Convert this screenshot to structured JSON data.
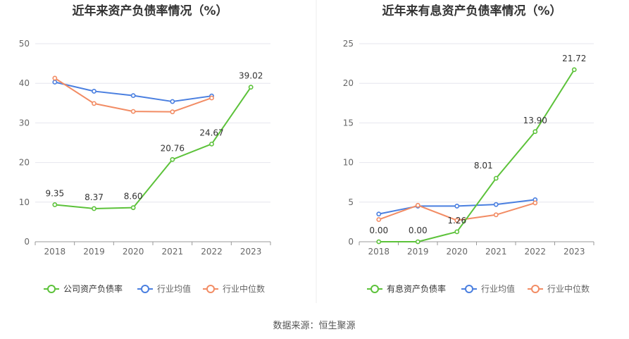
{
  "source": "数据来源：恒生聚源",
  "chart_data": [
    {
      "type": "line",
      "title": "近年来资产负债率情况（%）",
      "categories": [
        "2018",
        "2019",
        "2020",
        "2021",
        "2022",
        "2023"
      ],
      "ylim": [
        0,
        50
      ],
      "yticks": [
        0,
        10,
        20,
        30,
        40,
        50
      ],
      "grid": true,
      "legend_position": "bottom",
      "series": [
        {
          "name": "公司资产负债率",
          "color": "#5cc23a",
          "values": [
            9.35,
            8.37,
            8.6,
            20.76,
            24.67,
            39.02
          ],
          "labels": [
            "9.35",
            "8.37",
            "8.60",
            "20.76",
            "24.67",
            "39.02"
          ]
        },
        {
          "name": "行业均值",
          "color": "#4a7fe0",
          "values": [
            40.3,
            38.0,
            36.9,
            35.4,
            36.8,
            null
          ]
        },
        {
          "name": "行业中位数",
          "color": "#f28c64",
          "values": [
            41.3,
            34.9,
            32.9,
            32.8,
            36.3,
            null
          ]
        }
      ]
    },
    {
      "type": "line",
      "title": "近年来有息资产负债率情况（%）",
      "categories": [
        "2018",
        "2019",
        "2020",
        "2021",
        "2022",
        "2023"
      ],
      "ylim": [
        0,
        25
      ],
      "yticks": [
        0,
        5,
        10,
        15,
        20,
        25
      ],
      "grid": true,
      "legend_position": "bottom",
      "series": [
        {
          "name": "有息资产负债率",
          "color": "#5cc23a",
          "values": [
            0.0,
            0.0,
            1.26,
            8.01,
            13.9,
            21.72
          ],
          "labels": [
            "0.00",
            "0.00",
            "1.26",
            "8.01",
            "13.90",
            "21.72"
          ]
        },
        {
          "name": "行业均值",
          "color": "#4a7fe0",
          "values": [
            3.5,
            4.5,
            4.5,
            4.7,
            5.3,
            null
          ]
        },
        {
          "name": "行业中位数",
          "color": "#f28c64",
          "values": [
            2.8,
            4.6,
            2.7,
            3.4,
            4.9,
            null
          ]
        }
      ]
    }
  ]
}
